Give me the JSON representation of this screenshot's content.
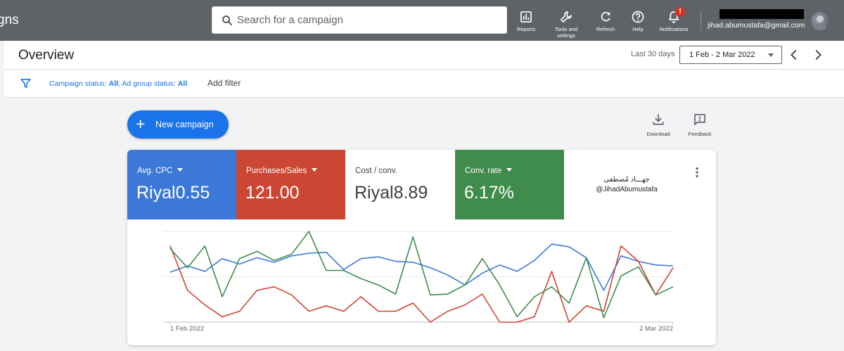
{
  "app": {
    "title_fragment": "gns"
  },
  "search": {
    "placeholder": "Search for a campaign"
  },
  "toolbar": {
    "reports": "Reports",
    "tools_settings": "Tools and settings",
    "refresh": "Refresh",
    "help": "Help",
    "notifications": "Notifications",
    "notification_badge": "!"
  },
  "user": {
    "email": "jihad.abumustafa@gmail.com"
  },
  "overview": {
    "title": "Overview",
    "range_label": "Last 30 days",
    "date_range": "1 Feb - 2 Mar 2022"
  },
  "filters": {
    "campaign_status_label": "Campaign status:",
    "campaign_status_value": "All",
    "separator": ";",
    "ad_group_status_label": "Ad group status:",
    "ad_group_status_value": "All",
    "add_filter": "Add filter"
  },
  "actions": {
    "new_campaign": "New campaign",
    "download": "Download",
    "feedback": "Feedback"
  },
  "metrics": [
    {
      "label": "Avg. CPC",
      "value": "Riyal0.55",
      "color": "#3c78d8"
    },
    {
      "label": "Purchases/Sales",
      "value": "121.00",
      "color": "#cc4634"
    },
    {
      "label": "Cost / conv.",
      "value": "Riyal8.89",
      "color": "#ffffff"
    },
    {
      "label": "Conv. rate",
      "value": "6.17%",
      "color": "#3f8c4c"
    }
  ],
  "watermark": {
    "arabic": "جهـــاد مُصطفى",
    "handle": "@JihadAbumustafa"
  },
  "chart_data": {
    "type": "line",
    "x_start_label": "1 Feb 2022",
    "x_end_label": "2 Mar 2022",
    "series": [
      {
        "color": "#3c78d8",
        "values": [
          0.55,
          0.62,
          0.56,
          0.7,
          0.64,
          0.71,
          0.66,
          0.73,
          0.76,
          0.77,
          0.58,
          0.7,
          0.72,
          0.67,
          0.66,
          0.6,
          0.52,
          0.41,
          0.54,
          0.63,
          0.56,
          0.68,
          0.86,
          0.83,
          0.71,
          0.35,
          0.73,
          0.67,
          0.63,
          0.62
        ]
      },
      {
        "color": "#cc4634",
        "values": [
          0.84,
          0.35,
          0.19,
          0.06,
          0.12,
          0.35,
          0.39,
          0.3,
          0.12,
          0.18,
          0.12,
          0.28,
          0.12,
          0.12,
          0.21,
          0.0,
          0.12,
          0.19,
          0.31,
          0.0,
          0.0,
          0.06,
          0.56,
          0.0,
          0.18,
          0.12,
          0.84,
          0.67,
          0.3,
          0.6
        ]
      },
      {
        "color": "#3f8c4c",
        "values": [
          0.81,
          0.6,
          0.84,
          0.28,
          0.7,
          0.78,
          0.68,
          0.75,
          1.0,
          0.57,
          0.57,
          0.48,
          0.41,
          0.31,
          0.94,
          0.3,
          0.31,
          0.41,
          0.7,
          0.41,
          0.06,
          0.28,
          0.39,
          0.21,
          0.71,
          0.05,
          0.51,
          0.61,
          0.3,
          0.39
        ]
      }
    ],
    "grid": true,
    "legend": "none"
  }
}
